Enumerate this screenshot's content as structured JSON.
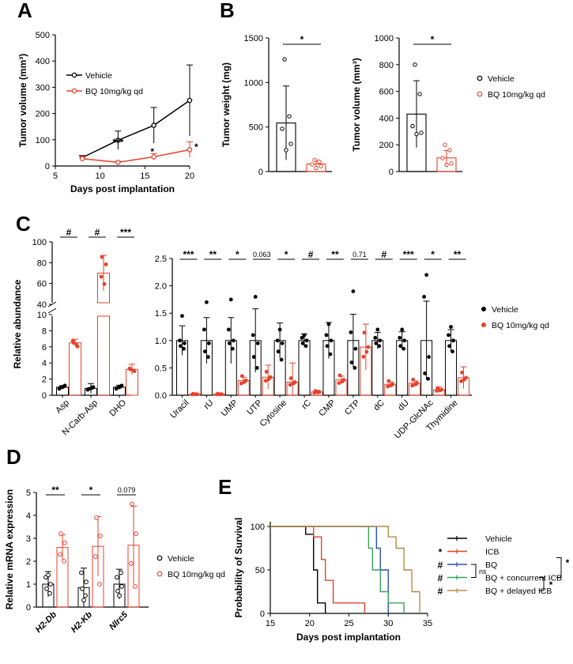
{
  "colors": {
    "vehicle": "#000000",
    "bq": "#e8412c",
    "icb": "#e8412c",
    "bq_only": "#2f4fb5",
    "concurrent": "#3aa35a",
    "delayed": "#b98a4a"
  },
  "chart_data": [
    {
      "panel": "A",
      "type": "line",
      "xlabel": "Days post implantation",
      "ylabel": "Tumor volume (mm³)",
      "xlim": [
        5,
        20
      ],
      "ylim": [
        0,
        500
      ],
      "xticks": [
        5,
        10,
        15,
        20
      ],
      "yticks": [
        0,
        100,
        200,
        300,
        400,
        500
      ],
      "series": [
        {
          "name": "Vehicle",
          "x": [
            8,
            12,
            16,
            20
          ],
          "y": [
            32,
            98,
            155,
            250
          ],
          "err": [
            8,
            35,
            68,
            135
          ]
        },
        {
          "name": "BQ 10mg/kg qd",
          "x": [
            8,
            12,
            16,
            20
          ],
          "y": [
            28,
            14,
            35,
            62
          ],
          "err": [
            10,
            4,
            12,
            30
          ]
        }
      ],
      "annotations": [
        {
          "x": 12,
          "text": "***"
        },
        {
          "x": 16,
          "text": "*"
        },
        {
          "x": 20,
          "text": "*"
        }
      ]
    },
    {
      "panel": "B1",
      "type": "bar",
      "ylabel": "Tumor weight (mg)",
      "ylim": [
        0,
        1500
      ],
      "yticks": [
        0,
        500,
        1000,
        1500
      ],
      "groups": [
        {
          "name": "Vehicle",
          "mean": 545,
          "sd": 415,
          "points": [
            1260,
            620,
            480,
            310,
            240
          ]
        },
        {
          "name": "BQ 10mg/kg qd",
          "mean": 85,
          "sd": 40,
          "points": [
            130,
            110,
            80,
            60,
            40
          ]
        }
      ],
      "significance": "*"
    },
    {
      "panel": "B2",
      "type": "bar",
      "ylabel": "Tumor volume (mm³)",
      "ylim": [
        0,
        1000
      ],
      "yticks": [
        0,
        200,
        400,
        600,
        800,
        1000
      ],
      "groups": [
        {
          "name": "Vehicle",
          "mean": 430,
          "sd": 250,
          "points": [
            800,
            580,
            340,
            290,
            280
          ]
        },
        {
          "name": "BQ 10mg/kg qd",
          "mean": 102,
          "sd": 55,
          "points": [
            200,
            160,
            100,
            60,
            50
          ]
        }
      ],
      "significance": "*"
    },
    {
      "panel": "C",
      "type": "bar",
      "ylabel": "Relative abundance",
      "left": {
        "categories": [
          "Asp",
          "N-Carb-Asp",
          "DHO"
        ],
        "significance": [
          "#",
          "#",
          "***"
        ],
        "vehicle": {
          "mean": [
            1.0,
            0.85,
            1.0
          ],
          "sd": [
            0.2,
            0.6,
            0.25
          ]
        },
        "bq": {
          "mean": [
            6.5,
            70,
            3.2
          ],
          "sd": [
            0.45,
            17,
            0.65
          ]
        }
      },
      "right": {
        "categories": [
          "Uracil",
          "rU",
          "UMP",
          "UTP",
          "Cytosine",
          "rC",
          "CMP",
          "CTP",
          "dC",
          "dU",
          "UDP-GlcNAc",
          "Thymidine"
        ],
        "significance": [
          "***",
          "**",
          "*",
          "0.063",
          "*",
          "#",
          "**",
          "0.71",
          "#",
          "***",
          "*",
          "**"
        ],
        "ylim": [
          0,
          2.5
        ],
        "yticks": [
          0,
          0.5,
          1.0,
          1.5,
          2.0,
          2.5
        ],
        "vehicle": {
          "mean": [
            1.0,
            1.0,
            1.0,
            1.0,
            1.0,
            1.0,
            1.0,
            1.0,
            1.0,
            1.0,
            1.0,
            1.0
          ],
          "sd": [
            0.27,
            0.42,
            0.42,
            0.58,
            0.32,
            0.12,
            0.33,
            0.48,
            0.15,
            0.16,
            0.72,
            0.2
          ]
        },
        "bq": {
          "mean": [
            0.02,
            0.02,
            0.27,
            0.33,
            0.24,
            0.06,
            0.28,
            0.88,
            0.2,
            0.22,
            0.1,
            0.32
          ],
          "sd": [
            0.01,
            0.01,
            0.06,
            0.22,
            0.35,
            0.03,
            0.07,
            0.42,
            0.04,
            0.04,
            0.05,
            0.2
          ]
        }
      },
      "legend": [
        "Vehicle",
        "BQ 10mg/kg qd"
      ]
    },
    {
      "panel": "D",
      "type": "bar",
      "ylabel": "Relative mRNA expression",
      "ylim": [
        0,
        5
      ],
      "yticks": [
        0,
        1,
        2,
        3,
        4,
        5
      ],
      "categories": [
        "H2-Db",
        "H2-Kb",
        "Nlrc5"
      ],
      "significance": [
        "**",
        "*",
        "0.079"
      ],
      "vehicle": {
        "mean": [
          1.0,
          0.85,
          1.0
        ],
        "sd": [
          0.55,
          0.85,
          0.65
        ]
      },
      "bq": {
        "mean": [
          2.6,
          2.65,
          2.7
        ],
        "sd": [
          0.55,
          1.3,
          1.7
        ]
      },
      "legend": [
        "Vehicle",
        "BQ 10mg/kg qd"
      ]
    },
    {
      "panel": "E",
      "type": "line",
      "ylabel": "Probability of Survival",
      "xlabel": "Days post implantation",
      "xlim": [
        15,
        35
      ],
      "ylim": [
        0,
        100
      ],
      "xticks": [
        15,
        20,
        25,
        30,
        35
      ],
      "yticks": [
        0,
        50,
        100
      ],
      "series": [
        {
          "name": "Vehicle",
          "x": [
            15,
            19.5,
            19.5,
            20.5,
            20.5,
            21,
            21,
            22,
            22
          ],
          "y": [
            100,
            100,
            91,
            91,
            50,
            50,
            12,
            12,
            0
          ]
        },
        {
          "name": "ICB",
          "x": [
            15,
            20.5,
            20.5,
            21.5,
            21.5,
            22,
            22,
            23,
            23,
            27,
            27
          ],
          "y": [
            100,
            100,
            88,
            88,
            62,
            62,
            38,
            38,
            12,
            12,
            0
          ]
        },
        {
          "name": "BQ",
          "x": [
            15,
            28.5,
            28.5,
            29,
            29,
            30,
            30
          ],
          "y": [
            100,
            100,
            75,
            75,
            50,
            50,
            0
          ]
        },
        {
          "name": "BQ + concurrent ICB",
          "x": [
            15,
            27.5,
            27.5,
            28,
            28,
            29,
            29,
            30,
            30,
            32,
            32
          ],
          "y": [
            100,
            100,
            75,
            75,
            50,
            50,
            25,
            25,
            12,
            12,
            0
          ]
        },
        {
          "name": "BQ + delayed ICB",
          "x": [
            15,
            30,
            30,
            31,
            31,
            32,
            32,
            33,
            33,
            34,
            34
          ],
          "y": [
            100,
            100,
            88,
            88,
            75,
            75,
            50,
            50,
            25,
            25,
            0
          ]
        }
      ],
      "legend_marks": [
        "",
        "*",
        "#",
        "#",
        "#"
      ],
      "comparisons": [
        "ns",
        "*",
        "*"
      ]
    }
  ],
  "panels": {
    "a": "A",
    "b": "B",
    "c": "C",
    "d": "D",
    "e": "E"
  }
}
